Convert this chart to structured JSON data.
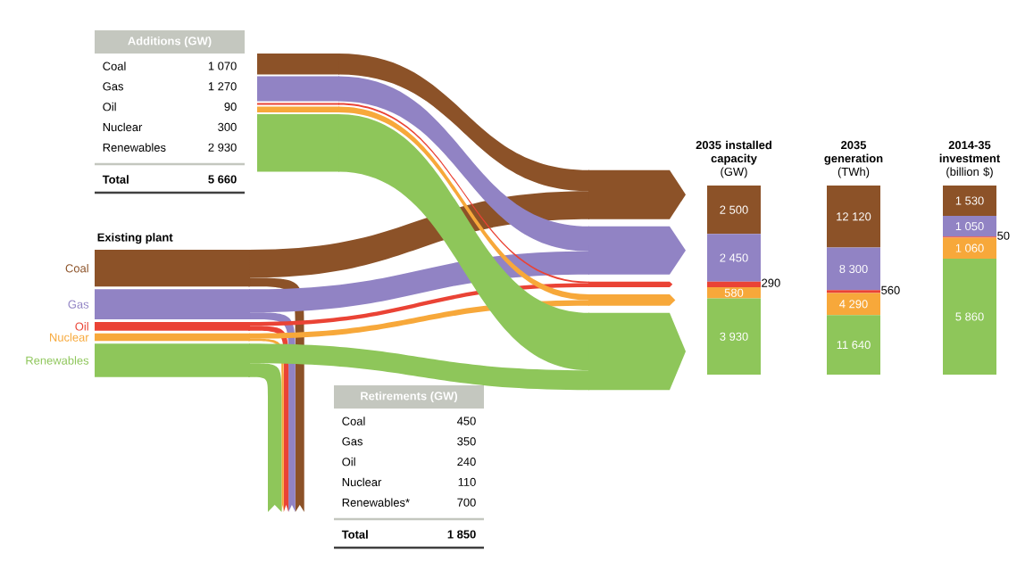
{
  "chart_data": [
    {
      "type": "other",
      "title": "Additions (GW)",
      "categories": [
        "Coal",
        "Gas",
        "Oil",
        "Nuclear",
        "Renewables",
        "Total"
      ],
      "values": [
        1070,
        1270,
        90,
        300,
        2930,
        5660
      ],
      "value_labels": [
        "1 070",
        "1 270",
        "90",
        "300",
        "2 930",
        "5 660"
      ]
    },
    {
      "type": "other",
      "title": "Retirements (GW)",
      "categories": [
        "Coal",
        "Gas",
        "Oil",
        "Nuclear",
        "Renewables*",
        "Total"
      ],
      "values": [
        450,
        350,
        240,
        110,
        700,
        1850
      ],
      "value_labels": [
        "450",
        "350",
        "240",
        "110",
        "700",
        "1 850"
      ]
    },
    {
      "type": "other",
      "title": "Existing plant",
      "categories": [
        "Coal",
        "Gas",
        "Oil",
        "Nuclear",
        "Renewables"
      ],
      "colors": [
        "#8c5228",
        "#9183c4",
        "#ea4335",
        "#f7a83a",
        "#8ec65a"
      ]
    },
    {
      "type": "bar",
      "stacked": true,
      "title": "2035 installed capacity",
      "subtitle": "(GW)",
      "categories": [
        null
      ],
      "series": [
        {
          "color": "#8ec65a",
          "values": [
            3930
          ],
          "value_labels": [
            "3 930"
          ]
        },
        {
          "color": "#f7a83a",
          "values": [
            580
          ],
          "value_labels": [
            "580"
          ]
        },
        {
          "color": "#ea4335",
          "values": [
            290
          ],
          "value_labels": [
            "290"
          ]
        },
        {
          "color": "#9183c4",
          "values": [
            2450
          ],
          "value_labels": [
            "2 450"
          ]
        },
        {
          "color": "#8c5228",
          "values": [
            2500
          ],
          "value_labels": [
            "2 500"
          ]
        }
      ]
    },
    {
      "type": "bar",
      "stacked": true,
      "title": "2035 generation",
      "subtitle": "(TWh)",
      "categories": [
        null
      ],
      "series": [
        {
          "color": "#8ec65a",
          "values": [
            11640
          ],
          "value_labels": [
            "11 640"
          ]
        },
        {
          "color": "#f7a83a",
          "values": [
            4290
          ],
          "value_labels": [
            "4 290"
          ]
        },
        {
          "color": "#ea4335",
          "values": [
            560
          ],
          "value_labels": [
            "560"
          ]
        },
        {
          "color": "#9183c4",
          "values": [
            8300
          ],
          "value_labels": [
            "8 300"
          ]
        },
        {
          "color": "#8c5228",
          "values": [
            12120
          ],
          "value_labels": [
            "12 120"
          ]
        }
      ]
    },
    {
      "type": "bar",
      "stacked": true,
      "title": "2014-35 investment",
      "subtitle": "(billion $)",
      "categories": [
        null
      ],
      "series": [
        {
          "color": "#8ec65a",
          "values": [
            5860
          ],
          "value_labels": [
            "5 860"
          ]
        },
        {
          "color": "#f7a83a",
          "values": [
            1060
          ],
          "value_labels": [
            "1 060"
          ]
        },
        {
          "color": "#ea4335",
          "values": [
            50
          ],
          "value_labels": [
            "50"
          ]
        },
        {
          "color": "#9183c4",
          "values": [
            1050
          ],
          "value_labels": [
            "1 050"
          ]
        },
        {
          "color": "#8c5228",
          "values": [
            1530
          ],
          "value_labels": [
            "1 530"
          ]
        }
      ]
    }
  ]
}
